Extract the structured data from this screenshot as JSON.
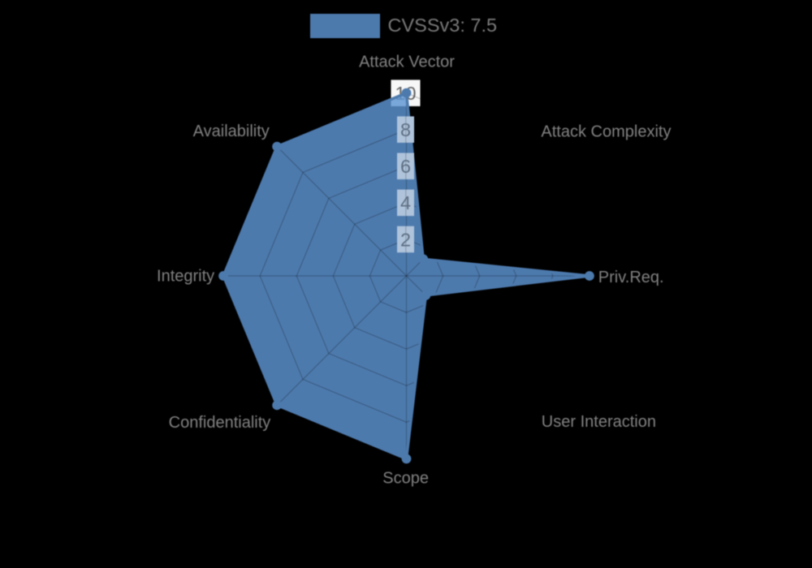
{
  "chart_data": {
    "type": "radar",
    "legend": {
      "label": "CVSSv3: 7.5"
    },
    "axes": [
      "Attack Vector",
      "Attack Complexity",
      "Priv.Req.",
      "User Interaction",
      "Scope",
      "Confidentiality",
      "Integrity",
      "Availability"
    ],
    "values": [
      10,
      1.3,
      10,
      1.5,
      10,
      10,
      10,
      10
    ],
    "radial_ticks": [
      "2",
      "4",
      "6",
      "8",
      "10"
    ],
    "rmax": 10,
    "grid": "on",
    "legend_position": "top-center",
    "colors": {
      "background": "#000000",
      "trace": "#4d7aad",
      "fill": "rgba(94,149,211,0.82)",
      "grid_line": "rgba(0,0,0,0.20)",
      "axis_label": "#828282",
      "legend_text": "#7a7a7a",
      "tick_text_max": "#666666",
      "tick_text": "#5e6e82",
      "tick_box_max": "#f7f7f7",
      "tick_box": "#afc4db"
    }
  }
}
